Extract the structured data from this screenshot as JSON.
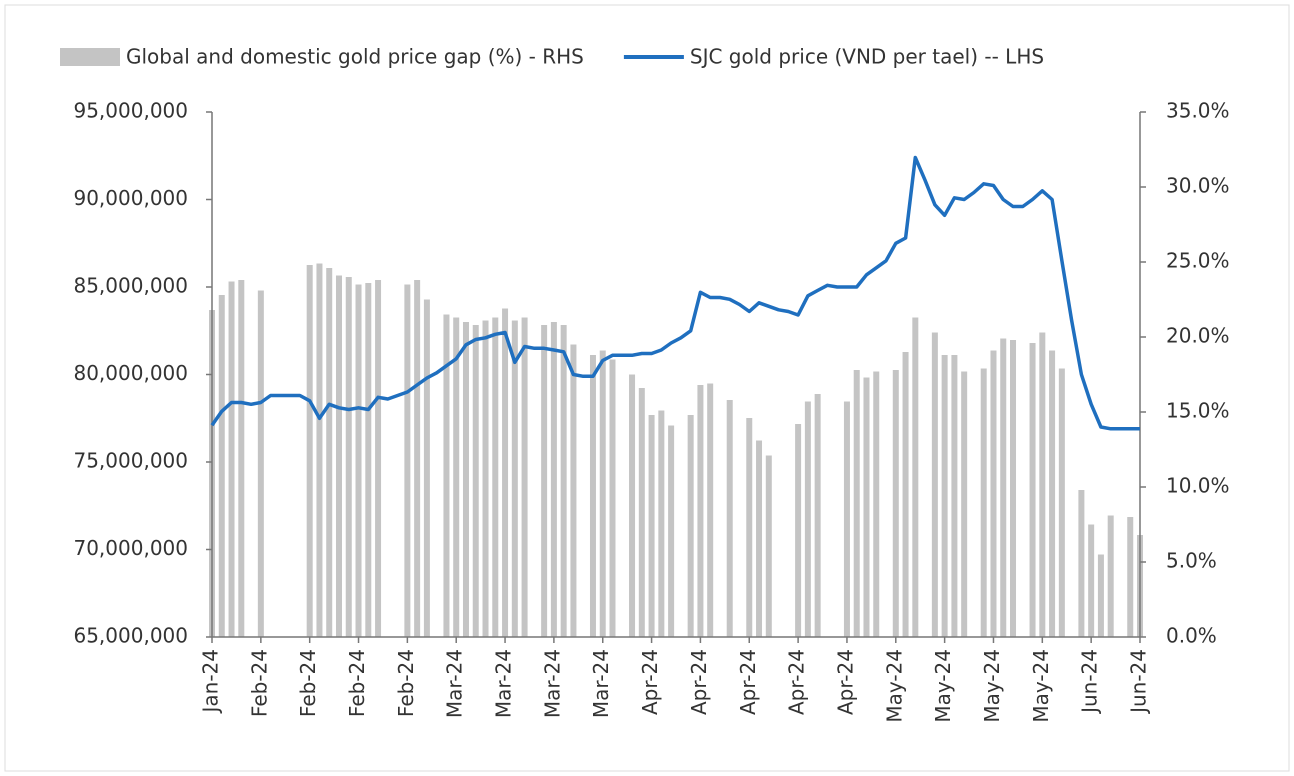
{
  "chart_data": {
    "type": "bar-line",
    "categories": [
      "Jan-24",
      null,
      null,
      null,
      null,
      "Feb-24",
      null,
      null,
      null,
      null,
      "Feb-24",
      null,
      null,
      null,
      null,
      "Feb-24",
      null,
      null,
      null,
      null,
      "Feb-24",
      null,
      null,
      null,
      null,
      "Mar-24",
      null,
      null,
      null,
      null,
      "Mar-24",
      null,
      null,
      null,
      null,
      "Mar-24",
      null,
      null,
      null,
      null,
      "Mar-24",
      null,
      null,
      null,
      null,
      "Apr-24",
      null,
      null,
      null,
      null,
      "Apr-24",
      null,
      null,
      null,
      null,
      "Apr-24",
      null,
      null,
      null,
      null,
      "Apr-24",
      null,
      null,
      null,
      null,
      "Apr-24",
      null,
      null,
      null,
      null,
      "May-24",
      null,
      null,
      null,
      null,
      "May-24",
      null,
      null,
      null,
      null,
      "May-24",
      null,
      null,
      null,
      null,
      "May-24",
      null,
      null,
      null,
      null,
      "Jun-24",
      null,
      null,
      null,
      null,
      "Jun-24"
    ],
    "series": [
      {
        "name": "Global and domestic gold price gap (%) - RHS",
        "type": "bar",
        "axis": "y2",
        "color": "#c4c4c4",
        "values": [
          21.8,
          22.8,
          23.7,
          23.8,
          null,
          23.1,
          null,
          null,
          null,
          null,
          24.8,
          24.9,
          24.6,
          24.1,
          24.0,
          23.5,
          23.6,
          23.8,
          null,
          null,
          23.5,
          23.8,
          22.5,
          null,
          21.5,
          21.3,
          21.0,
          20.8,
          21.1,
          21.3,
          21.9,
          21.1,
          21.3,
          null,
          20.8,
          21.0,
          20.8,
          19.5,
          null,
          18.8,
          19.1,
          18.5,
          null,
          17.5,
          16.6,
          14.8,
          15.1,
          14.1,
          null,
          14.8,
          16.8,
          16.9,
          null,
          15.8,
          null,
          14.6,
          13.1,
          12.1,
          null,
          null,
          14.2,
          15.7,
          16.2,
          null,
          null,
          15.7,
          17.8,
          17.3,
          17.7,
          null,
          17.8,
          19.0,
          21.3,
          null,
          20.3,
          18.8,
          18.8,
          17.7,
          null,
          17.9,
          19.1,
          19.9,
          19.8,
          null,
          19.6,
          20.3,
          19.1,
          17.9,
          null,
          9.8,
          7.5,
          5.5,
          8.1,
          null,
          8.0,
          6.8
        ]
      },
      {
        "name": "SJC gold price (VND per tael) -- LHS",
        "type": "line",
        "axis": "y",
        "color": "#1f6fbf",
        "values": [
          77100000,
          77900000,
          78400000,
          78400000,
          78300000,
          78400000,
          78800000,
          78800000,
          78800000,
          78800000,
          78500000,
          77500000,
          78300000,
          78100000,
          78000000,
          78100000,
          78000000,
          78700000,
          78600000,
          78800000,
          79000000,
          79400000,
          79800000,
          80100000,
          80500000,
          80900000,
          81700000,
          82000000,
          82100000,
          82300000,
          82400000,
          80700000,
          81600000,
          81500000,
          81500000,
          81400000,
          81300000,
          80000000,
          79900000,
          79900000,
          80800000,
          81100000,
          81100000,
          81100000,
          81200000,
          81200000,
          81400000,
          81800000,
          82100000,
          82500000,
          84700000,
          84400000,
          84400000,
          84300000,
          84000000,
          83600000,
          84100000,
          83900000,
          83700000,
          83600000,
          83400000,
          84500000,
          84800000,
          85100000,
          85000000,
          85000000,
          85000000,
          85700000,
          86100000,
          86500000,
          87500000,
          87800000,
          92400000,
          91100000,
          89700000,
          89100000,
          90100000,
          90000000,
          90400000,
          90900000,
          90800000,
          90000000,
          89600000,
          89600000,
          90000000,
          90500000,
          90000000,
          86500000,
          83100000,
          80000000,
          78300000,
          77000000,
          76900000,
          76900000,
          76900000,
          76900000
        ]
      }
    ],
    "ylim": [
      65000000,
      95000000
    ],
    "yticks": [
      {
        "value": 65000000,
        "label": "65,000,000"
      },
      {
        "value": 70000000,
        "label": "70,000,000"
      },
      {
        "value": 75000000,
        "label": "75,000,000"
      },
      {
        "value": 80000000,
        "label": "80,000,000"
      },
      {
        "value": 85000000,
        "label": "85,000,000"
      },
      {
        "value": 90000000,
        "label": "90,000,000"
      },
      {
        "value": 95000000,
        "label": "95,000,000"
      }
    ],
    "y2lim": [
      0,
      35
    ],
    "y2ticks": [
      {
        "value": 0,
        "label": "0.0%"
      },
      {
        "value": 5,
        "label": "5.0%"
      },
      {
        "value": 10,
        "label": "10.0%"
      },
      {
        "value": 15,
        "label": "15.0%"
      },
      {
        "value": 20,
        "label": "20.0%"
      },
      {
        "value": 25,
        "label": "25.0%"
      },
      {
        "value": 30,
        "label": "30.0%"
      },
      {
        "value": 35,
        "label": "35.0%"
      }
    ],
    "legend": "top"
  }
}
